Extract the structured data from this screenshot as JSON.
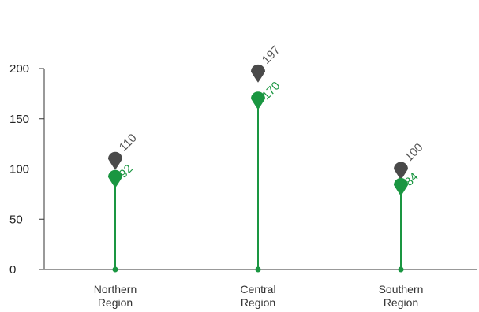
{
  "chart_data": {
    "type": "lollipop",
    "categories": [
      {
        "line1": "Northern",
        "line2": "Region"
      },
      {
        "line1": "Central",
        "line2": "Region"
      },
      {
        "line1": "Southern",
        "line2": "Region"
      }
    ],
    "series": [
      {
        "values": [
          110,
          197,
          100
        ],
        "labels": [
          "110",
          "197",
          "100"
        ],
        "color": "#4a4a4a"
      },
      {
        "values": [
          92,
          170,
          84
        ],
        "labels": [
          "92",
          "170",
          "84"
        ],
        "color": "#1a9641"
      }
    ],
    "y_ticks": [
      "0",
      "50",
      "100",
      "150",
      "200"
    ],
    "ylim": [
      0,
      200
    ],
    "stem_color": "#1a9641",
    "axis_color": "#333333",
    "title": "",
    "xlabel": "",
    "ylabel": "",
    "grid": false,
    "legend": "none"
  }
}
